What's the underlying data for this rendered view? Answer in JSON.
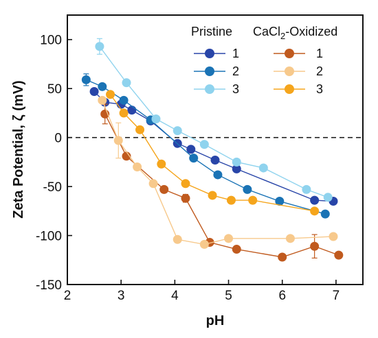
{
  "chart_data": {
    "type": "scatter",
    "xlabel": "pH",
    "ylabel": "Zeta Potential, ζ (mV)",
    "xlim": [
      2,
      7.5
    ],
    "ylim": [
      -150,
      125
    ],
    "xticks": [
      "2",
      "3",
      "4",
      "5",
      "6",
      "7"
    ],
    "yticks": [
      "100",
      "50",
      "0",
      "-50",
      "-100",
      "-150"
    ],
    "grid": false,
    "zero_line": "dashed",
    "legend": {
      "placement": "top-right",
      "group_headers": [
        {
          "text": "Pristine"
        },
        {
          "text": "CaCl",
          "sub": "2",
          "after": "-Oxidized"
        }
      ]
    },
    "series": [
      {
        "group": "Pristine",
        "name": "1",
        "color": "#2845a8",
        "x": [
          2.5,
          2.7,
          3.0,
          3.2,
          3.55,
          4.05,
          4.3,
          4.75,
          5.15,
          6.6,
          6.95
        ],
        "y": [
          47,
          36,
          34,
          28,
          17,
          -6,
          -12,
          -23,
          -32,
          -64,
          -65
        ],
        "err": [
          0,
          0,
          0,
          0,
          0,
          0,
          0,
          0,
          0,
          0,
          0
        ]
      },
      {
        "group": "Pristine",
        "name": "2",
        "color": "#1a73b5",
        "x": [
          2.35,
          2.65,
          3.05,
          3.55,
          4.35,
          4.8,
          5.35,
          5.95,
          6.8
        ],
        "y": [
          59,
          52,
          38,
          18,
          -21,
          -38,
          -53,
          -65,
          -78
        ],
        "err": [
          6,
          0,
          0,
          0,
          0,
          0,
          0,
          0,
          0
        ]
      },
      {
        "group": "Pristine",
        "name": "3",
        "color": "#8fd3ee",
        "x": [
          2.6,
          3.1,
          3.65,
          4.05,
          4.55,
          5.15,
          5.65,
          6.45,
          6.85
        ],
        "y": [
          93,
          56,
          19,
          7,
          -7,
          -25,
          -31,
          -53,
          -61
        ],
        "err": [
          8,
          0,
          0,
          0,
          0,
          0,
          0,
          0,
          0
        ]
      },
      {
        "group": "CaCl2-Oxidized",
        "name": "1",
        "color": "#c05a1e",
        "x": [
          2.7,
          3.1,
          3.8,
          4.2,
          4.65,
          5.15,
          6.0,
          6.6,
          7.05
        ],
        "y": [
          24,
          -19,
          -53,
          -62,
          -107,
          -114,
          -122,
          -111,
          -120
        ],
        "err": [
          10,
          0,
          0,
          4,
          0,
          0,
          0,
          12,
          0
        ]
      },
      {
        "group": "CaCl2-Oxidized",
        "name": "2",
        "color": "#f7c98c",
        "x": [
          2.65,
          2.95,
          3.3,
          3.6,
          4.05,
          4.55,
          5.0,
          6.15,
          6.95
        ],
        "y": [
          38,
          -3,
          -30,
          -47,
          -104,
          -109,
          -103,
          -103,
          -101
        ],
        "err": [
          0,
          18,
          0,
          0,
          0,
          0,
          0,
          0,
          0
        ]
      },
      {
        "group": "CaCl2-Oxidized",
        "name": "3",
        "color": "#f5a51c",
        "x": [
          2.8,
          3.05,
          3.35,
          3.75,
          4.2,
          4.7,
          5.05,
          5.45,
          6.6
        ],
        "y": [
          44,
          25,
          8,
          -27,
          -47,
          -59,
          -64,
          -64,
          -75
        ],
        "err": [
          0,
          0,
          0,
          0,
          0,
          0,
          0,
          0,
          0
        ]
      }
    ]
  }
}
